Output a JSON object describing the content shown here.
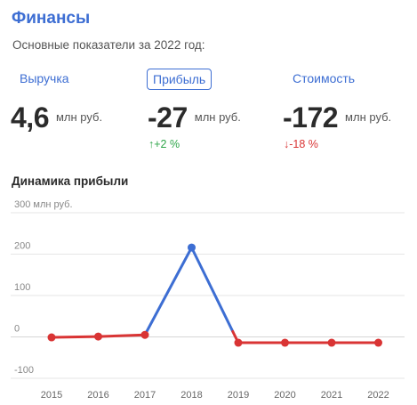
{
  "header": {
    "title": "Финансы",
    "subtitle": "Основные показатели за 2022 год:"
  },
  "tabs": [
    {
      "label": "Выручка",
      "active": false
    },
    {
      "label": "Прибыль",
      "active": true
    },
    {
      "label": "Стоимость",
      "active": false
    }
  ],
  "metrics": [
    {
      "value": "4,6",
      "unit": "млн руб.",
      "change": ""
    },
    {
      "value": "-27",
      "unit": "млн руб.",
      "change": "↑+2 %",
      "change_dir": "up"
    },
    {
      "value": "-172",
      "unit": "млн руб.",
      "change": "↓-18 %",
      "change_dir": "down"
    }
  ],
  "colors": {
    "accent": "#3d6ed3",
    "negative": "#d93434",
    "positive": "#2fa64a",
    "grid": "#e6e6e6"
  },
  "chart_data": {
    "type": "line",
    "title": "Динамика прибыли",
    "y_unit_label": "300 млн руб.",
    "x": [
      "2015",
      "2016",
      "2017",
      "2018",
      "2019",
      "2020",
      "2021",
      "2022"
    ],
    "series": [
      {
        "values": [
          -14,
          -12,
          -8,
          203,
          -27,
          -27,
          -27,
          -27
        ]
      }
    ],
    "yticks": [
      300,
      200,
      100,
      0,
      -100
    ],
    "ytick_labels": [
      "300 млн руб.",
      "200",
      "100",
      "0",
      "-100"
    ],
    "ylim": [
      -100,
      300
    ],
    "grid": true,
    "positive_color": "#3d6ed3",
    "negative_color": "#d93434"
  }
}
